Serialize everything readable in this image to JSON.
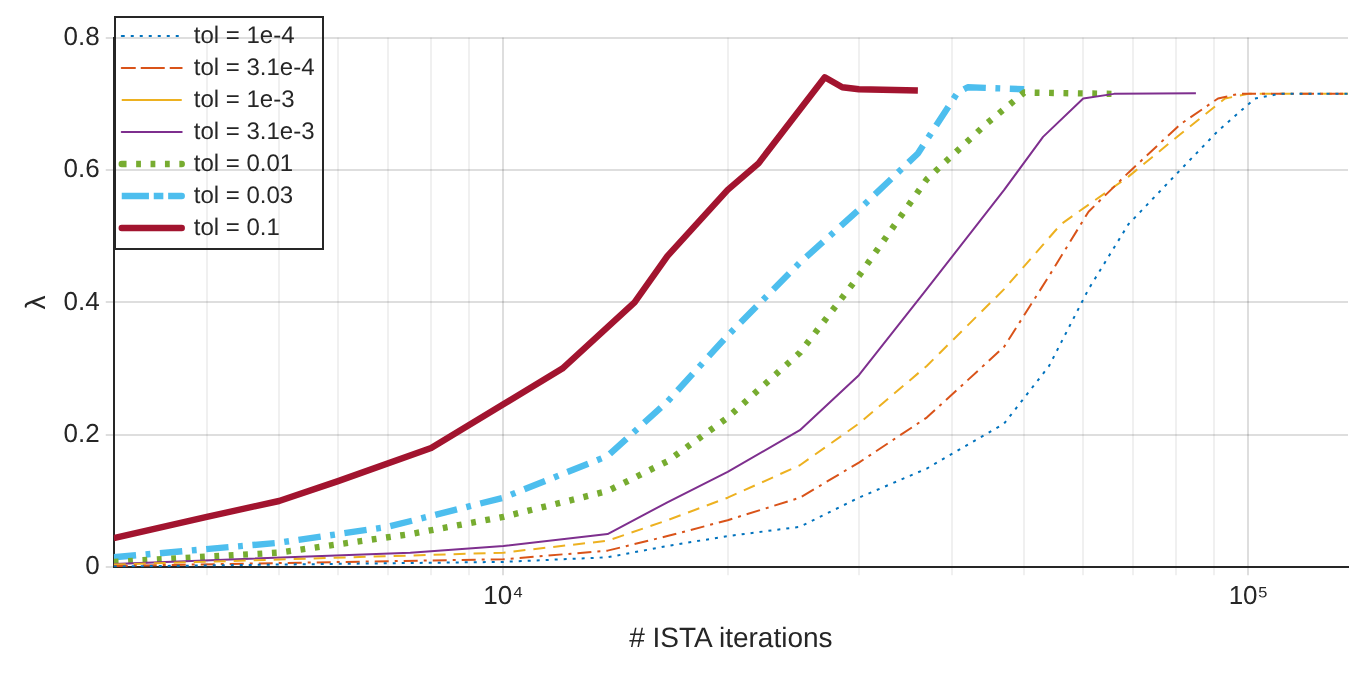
{
  "chart_data": {
    "type": "line",
    "xlabel": "# ISTA iterations",
    "ylabel": "λ",
    "log": "x",
    "grid": true,
    "legend": "top left",
    "marker": "none",
    "xlim": [
      3000,
      136000
    ],
    "xticks": [
      {
        "value": 4000,
        "label": null
      },
      {
        "value": 5000,
        "label": null
      },
      {
        "value": 6000,
        "label": null
      },
      {
        "value": 7000,
        "label": null
      },
      {
        "value": 8000,
        "label": null
      },
      {
        "value": 9000,
        "label": null
      },
      {
        "value": 10000,
        "label": "10⁴"
      },
      {
        "value": 20000,
        "label": null
      },
      {
        "value": 30000,
        "label": null
      },
      {
        "value": 40000,
        "label": null
      },
      {
        "value": 50000,
        "label": null
      },
      {
        "value": 60000,
        "label": null
      },
      {
        "value": 70000,
        "label": null
      },
      {
        "value": 80000,
        "label": null
      },
      {
        "value": 90000,
        "label": null
      },
      {
        "value": 100000,
        "label": "10⁵"
      }
    ],
    "ylim": [
      0,
      0.8
    ],
    "yticks": [
      0,
      0.2,
      0.4,
      0.6,
      0.8
    ],
    "series": [
      {
        "name": "tol = 1e-4",
        "color": "#0072bd",
        "line_style": "dotted",
        "x": [
          3000,
          10000,
          13800,
          16600,
          20000,
          25000,
          30000,
          37000,
          47000,
          54000,
          61000,
          69000,
          81000,
          91000,
          102000,
          110000,
          136000
        ],
        "values": [
          0.001,
          0.008,
          0.015,
          0.032,
          0.047,
          0.061,
          0.105,
          0.149,
          0.217,
          0.304,
          0.42,
          0.518,
          0.6,
          0.659,
          0.708,
          0.715,
          0.715
        ]
      },
      {
        "name": "tol = 3.1e-4",
        "color": "#d95319",
        "line_style": "dashdot",
        "x": [
          3000,
          10000,
          13800,
          16600,
          20000,
          25000,
          30000,
          37000,
          47000,
          54000,
          61000,
          69000,
          81000,
          91000,
          97000,
          136000
        ],
        "values": [
          0.002,
          0.012,
          0.025,
          0.047,
          0.071,
          0.105,
          0.158,
          0.226,
          0.333,
          0.44,
          0.537,
          0.596,
          0.669,
          0.708,
          0.715,
          0.715
        ]
      },
      {
        "name": "tol = 1e-3",
        "color": "#edb120",
        "line_style": "dashed",
        "x": [
          3000,
          10000,
          13800,
          16600,
          20000,
          25000,
          30000,
          37000,
          47000,
          56000,
          69000,
          81000,
          93000,
          100000,
          136000
        ],
        "values": [
          0.004,
          0.022,
          0.04,
          0.071,
          0.105,
          0.154,
          0.217,
          0.304,
          0.42,
          0.518,
          0.59,
          0.654,
          0.708,
          0.715,
          0.715
        ]
      },
      {
        "name": "tol = 3.1e-3",
        "color": "#7e2f8e",
        "line_style": "solid",
        "x": [
          3000,
          7500,
          10000,
          13800,
          16600,
          20000,
          25000,
          30000,
          37000,
          47000,
          53000,
          60000,
          66000,
          85000
        ],
        "values": [
          0.005,
          0.022,
          0.032,
          0.05,
          0.098,
          0.144,
          0.207,
          0.29,
          0.42,
          0.57,
          0.65,
          0.708,
          0.715,
          0.716
        ]
      },
      {
        "name": "tol = 0.01",
        "color": "#77ac30",
        "line_style": "dotted",
        "x": [
          3000,
          5000,
          7500,
          10000,
          13800,
          16600,
          20000,
          25000,
          30000,
          37000,
          44500,
          50000,
          66000
        ],
        "values": [
          0.008,
          0.022,
          0.05,
          0.076,
          0.115,
          0.16,
          0.226,
          0.324,
          0.44,
          0.586,
          0.67,
          0.717,
          0.715
        ]
      },
      {
        "name": "tol = 0.03",
        "color": "#4dbeee",
        "line_style": "dashdot",
        "x": [
          3000,
          5000,
          7000,
          10000,
          13800,
          16600,
          20000,
          25000,
          30000,
          36000,
          40700,
          42000,
          50000
        ],
        "values": [
          0.015,
          0.037,
          0.061,
          0.105,
          0.168,
          0.25,
          0.35,
          0.46,
          0.54,
          0.625,
          0.717,
          0.725,
          0.722
        ]
      },
      {
        "name": "tol = 0.1",
        "color": "#a2142f",
        "line_style": "solid",
        "x": [
          3000,
          4000,
          5000,
          6000,
          8000,
          10000,
          12000,
          15000,
          16600,
          20000,
          22000,
          27000,
          28500,
          30000,
          36000
        ],
        "values": [
          0.044,
          0.076,
          0.1,
          0.13,
          0.18,
          0.246,
          0.3,
          0.4,
          0.47,
          0.57,
          0.61,
          0.74,
          0.725,
          0.722,
          0.72
        ]
      }
    ]
  }
}
